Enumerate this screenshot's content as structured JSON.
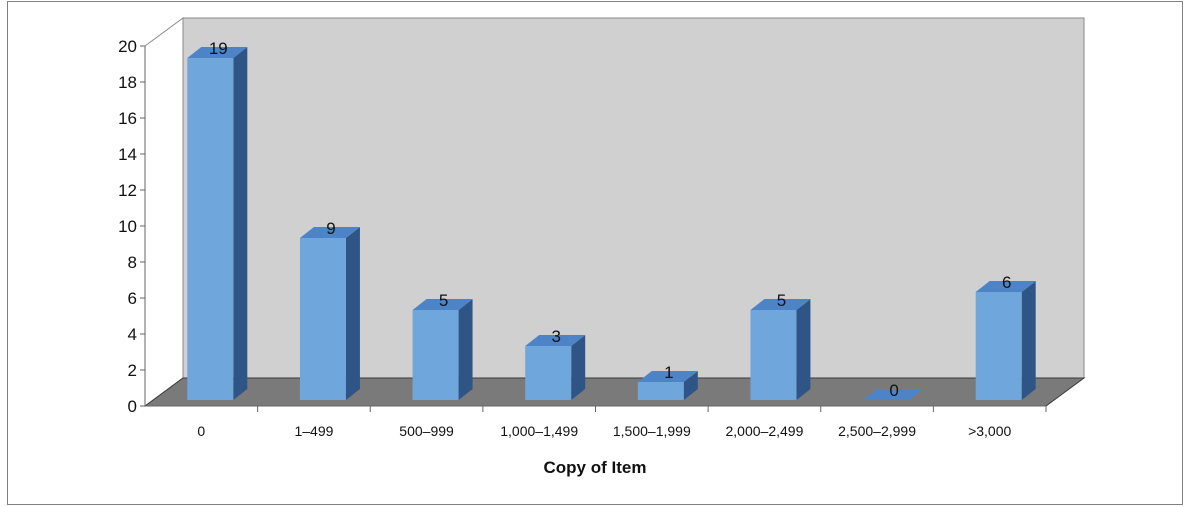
{
  "chart_data": {
    "type": "bar",
    "title": "",
    "xlabel": "Copy of Item",
    "ylabel": "",
    "categories": [
      "0",
      "1–499",
      "500–999",
      "1,000–1,499",
      "1,500–1,999",
      "2,000–2,499",
      "2,500–2,999",
      ">3,000"
    ],
    "values": [
      19,
      9,
      5,
      3,
      1,
      5,
      0,
      6
    ],
    "ylim": [
      0,
      20
    ],
    "yticks": [
      0,
      2,
      4,
      6,
      8,
      10,
      12,
      14,
      16,
      18,
      20
    ],
    "grid": false,
    "style": "3d-column",
    "colors": {
      "bar_front": "#6fa6dc",
      "bar_top": "#4d84c8",
      "bar_side": "#2f5486",
      "back_wall": "#d0d0d0",
      "floor": "#7a7a7a"
    }
  }
}
